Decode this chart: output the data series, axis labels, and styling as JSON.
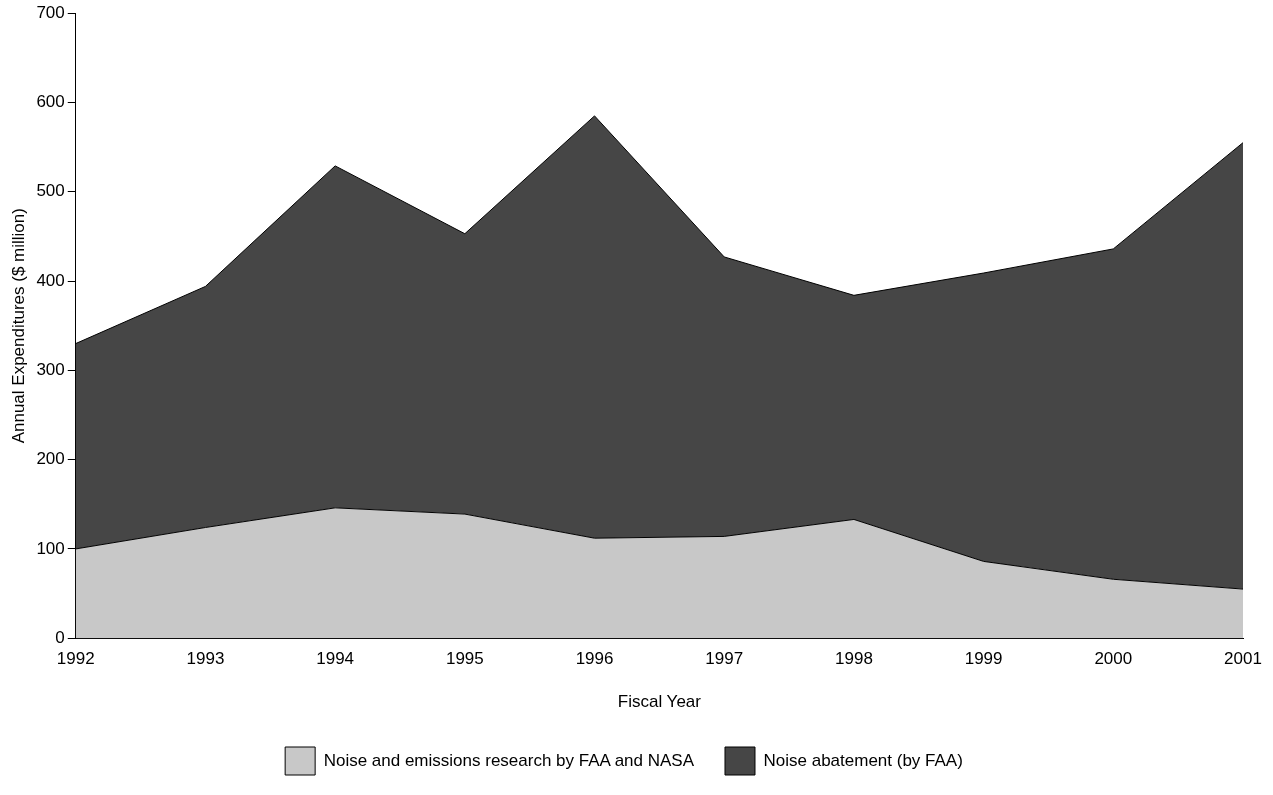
{
  "chart_data": {
    "type": "area",
    "stacked": true,
    "xlabel": "Fiscal Year",
    "ylabel": "Annual Expenditures ($ million)",
    "categories": [
      "1992",
      "1993",
      "1994",
      "1995",
      "1996",
      "1997",
      "1998",
      "1999",
      "2000",
      "2001"
    ],
    "series": [
      {
        "name": "Noise and emissions research by FAA and NASA",
        "color": "#c8c8c8",
        "values": [
          100,
          124,
          146,
          139,
          112,
          114,
          133,
          86,
          66,
          55
        ]
      },
      {
        "name": "Noise abatement (by FAA)",
        "color": "#464646",
        "values": [
          230,
          270,
          383,
          314,
          473,
          313,
          251,
          323,
          370,
          500
        ]
      }
    ],
    "ylim": [
      0,
      700
    ],
    "yticks": [
      0,
      100,
      200,
      300,
      400,
      500,
      600,
      700
    ],
    "grid": false,
    "legend": "bottom"
  }
}
